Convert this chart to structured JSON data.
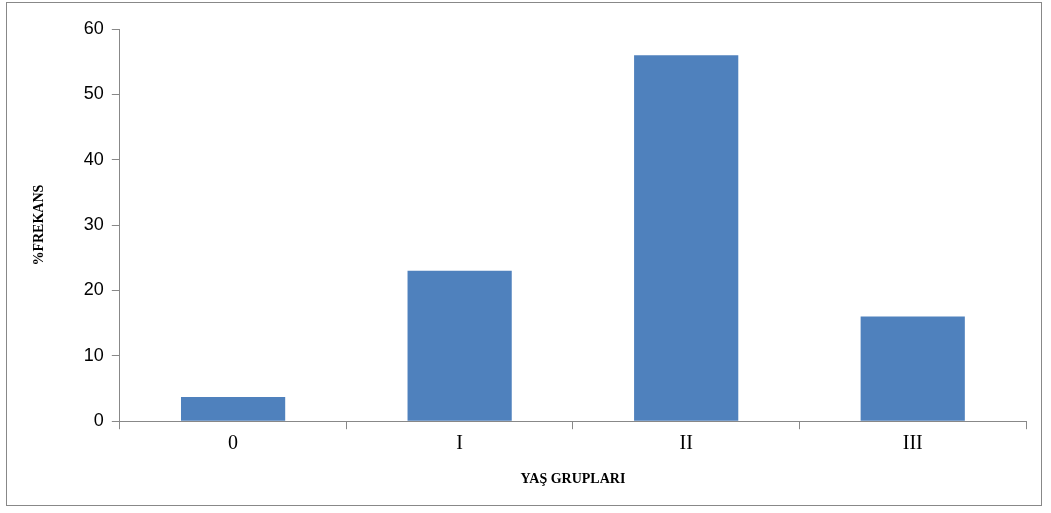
{
  "chart_data": {
    "type": "bar",
    "xlabel": "YAŞ GRUPLARI",
    "ylabel": "%FREKANS",
    "categories": [
      "0",
      "I",
      "II",
      "III"
    ],
    "values": [
      3.7,
      23,
      56,
      16
    ],
    "color": "#4f81bd",
    "ylim": [
      0,
      60
    ],
    "yticks": [
      0,
      10,
      20,
      30,
      40,
      50,
      60
    ],
    "grid": false,
    "legend": false
  }
}
